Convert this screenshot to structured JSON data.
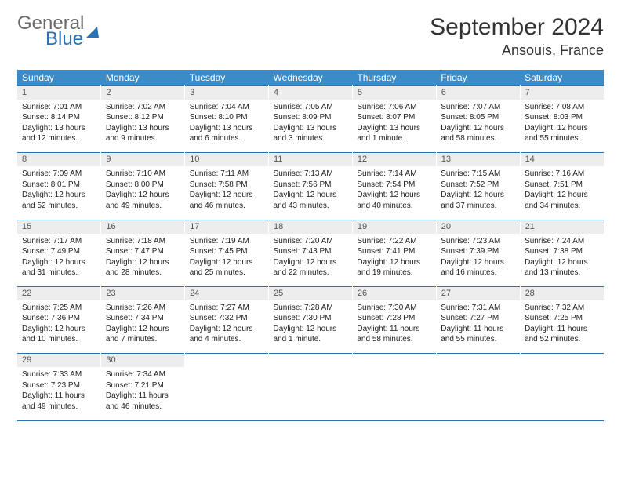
{
  "brand": {
    "general": "General",
    "blue": "Blue"
  },
  "title": "September 2024",
  "location": "Ansouis, France",
  "day_headers": [
    "Sunday",
    "Monday",
    "Tuesday",
    "Wednesday",
    "Thursday",
    "Friday",
    "Saturday"
  ],
  "colors": {
    "header_bg": "#3b8bc8",
    "header_text": "#ffffff",
    "daynum_bg": "#ededed",
    "border": "#2a72b5",
    "logo_gray": "#6b6b6b",
    "logo_blue": "#2a72b5"
  },
  "weeks": [
    [
      {
        "n": "1",
        "sunrise": "Sunrise: 7:01 AM",
        "sunset": "Sunset: 8:14 PM",
        "daylight": "Daylight: 13 hours and 12 minutes."
      },
      {
        "n": "2",
        "sunrise": "Sunrise: 7:02 AM",
        "sunset": "Sunset: 8:12 PM",
        "daylight": "Daylight: 13 hours and 9 minutes."
      },
      {
        "n": "3",
        "sunrise": "Sunrise: 7:04 AM",
        "sunset": "Sunset: 8:10 PM",
        "daylight": "Daylight: 13 hours and 6 minutes."
      },
      {
        "n": "4",
        "sunrise": "Sunrise: 7:05 AM",
        "sunset": "Sunset: 8:09 PM",
        "daylight": "Daylight: 13 hours and 3 minutes."
      },
      {
        "n": "5",
        "sunrise": "Sunrise: 7:06 AM",
        "sunset": "Sunset: 8:07 PM",
        "daylight": "Daylight: 13 hours and 1 minute."
      },
      {
        "n": "6",
        "sunrise": "Sunrise: 7:07 AM",
        "sunset": "Sunset: 8:05 PM",
        "daylight": "Daylight: 12 hours and 58 minutes."
      },
      {
        "n": "7",
        "sunrise": "Sunrise: 7:08 AM",
        "sunset": "Sunset: 8:03 PM",
        "daylight": "Daylight: 12 hours and 55 minutes."
      }
    ],
    [
      {
        "n": "8",
        "sunrise": "Sunrise: 7:09 AM",
        "sunset": "Sunset: 8:01 PM",
        "daylight": "Daylight: 12 hours and 52 minutes."
      },
      {
        "n": "9",
        "sunrise": "Sunrise: 7:10 AM",
        "sunset": "Sunset: 8:00 PM",
        "daylight": "Daylight: 12 hours and 49 minutes."
      },
      {
        "n": "10",
        "sunrise": "Sunrise: 7:11 AM",
        "sunset": "Sunset: 7:58 PM",
        "daylight": "Daylight: 12 hours and 46 minutes."
      },
      {
        "n": "11",
        "sunrise": "Sunrise: 7:13 AM",
        "sunset": "Sunset: 7:56 PM",
        "daylight": "Daylight: 12 hours and 43 minutes."
      },
      {
        "n": "12",
        "sunrise": "Sunrise: 7:14 AM",
        "sunset": "Sunset: 7:54 PM",
        "daylight": "Daylight: 12 hours and 40 minutes."
      },
      {
        "n": "13",
        "sunrise": "Sunrise: 7:15 AM",
        "sunset": "Sunset: 7:52 PM",
        "daylight": "Daylight: 12 hours and 37 minutes."
      },
      {
        "n": "14",
        "sunrise": "Sunrise: 7:16 AM",
        "sunset": "Sunset: 7:51 PM",
        "daylight": "Daylight: 12 hours and 34 minutes."
      }
    ],
    [
      {
        "n": "15",
        "sunrise": "Sunrise: 7:17 AM",
        "sunset": "Sunset: 7:49 PM",
        "daylight": "Daylight: 12 hours and 31 minutes."
      },
      {
        "n": "16",
        "sunrise": "Sunrise: 7:18 AM",
        "sunset": "Sunset: 7:47 PM",
        "daylight": "Daylight: 12 hours and 28 minutes."
      },
      {
        "n": "17",
        "sunrise": "Sunrise: 7:19 AM",
        "sunset": "Sunset: 7:45 PM",
        "daylight": "Daylight: 12 hours and 25 minutes."
      },
      {
        "n": "18",
        "sunrise": "Sunrise: 7:20 AM",
        "sunset": "Sunset: 7:43 PM",
        "daylight": "Daylight: 12 hours and 22 minutes."
      },
      {
        "n": "19",
        "sunrise": "Sunrise: 7:22 AM",
        "sunset": "Sunset: 7:41 PM",
        "daylight": "Daylight: 12 hours and 19 minutes."
      },
      {
        "n": "20",
        "sunrise": "Sunrise: 7:23 AM",
        "sunset": "Sunset: 7:39 PM",
        "daylight": "Daylight: 12 hours and 16 minutes."
      },
      {
        "n": "21",
        "sunrise": "Sunrise: 7:24 AM",
        "sunset": "Sunset: 7:38 PM",
        "daylight": "Daylight: 12 hours and 13 minutes."
      }
    ],
    [
      {
        "n": "22",
        "sunrise": "Sunrise: 7:25 AM",
        "sunset": "Sunset: 7:36 PM",
        "daylight": "Daylight: 12 hours and 10 minutes."
      },
      {
        "n": "23",
        "sunrise": "Sunrise: 7:26 AM",
        "sunset": "Sunset: 7:34 PM",
        "daylight": "Daylight: 12 hours and 7 minutes."
      },
      {
        "n": "24",
        "sunrise": "Sunrise: 7:27 AM",
        "sunset": "Sunset: 7:32 PM",
        "daylight": "Daylight: 12 hours and 4 minutes."
      },
      {
        "n": "25",
        "sunrise": "Sunrise: 7:28 AM",
        "sunset": "Sunset: 7:30 PM",
        "daylight": "Daylight: 12 hours and 1 minute."
      },
      {
        "n": "26",
        "sunrise": "Sunrise: 7:30 AM",
        "sunset": "Sunset: 7:28 PM",
        "daylight": "Daylight: 11 hours and 58 minutes."
      },
      {
        "n": "27",
        "sunrise": "Sunrise: 7:31 AM",
        "sunset": "Sunset: 7:27 PM",
        "daylight": "Daylight: 11 hours and 55 minutes."
      },
      {
        "n": "28",
        "sunrise": "Sunrise: 7:32 AM",
        "sunset": "Sunset: 7:25 PM",
        "daylight": "Daylight: 11 hours and 52 minutes."
      }
    ],
    [
      {
        "n": "29",
        "sunrise": "Sunrise: 7:33 AM",
        "sunset": "Sunset: 7:23 PM",
        "daylight": "Daylight: 11 hours and 49 minutes."
      },
      {
        "n": "30",
        "sunrise": "Sunrise: 7:34 AM",
        "sunset": "Sunset: 7:21 PM",
        "daylight": "Daylight: 11 hours and 46 minutes."
      },
      null,
      null,
      null,
      null,
      null
    ]
  ]
}
